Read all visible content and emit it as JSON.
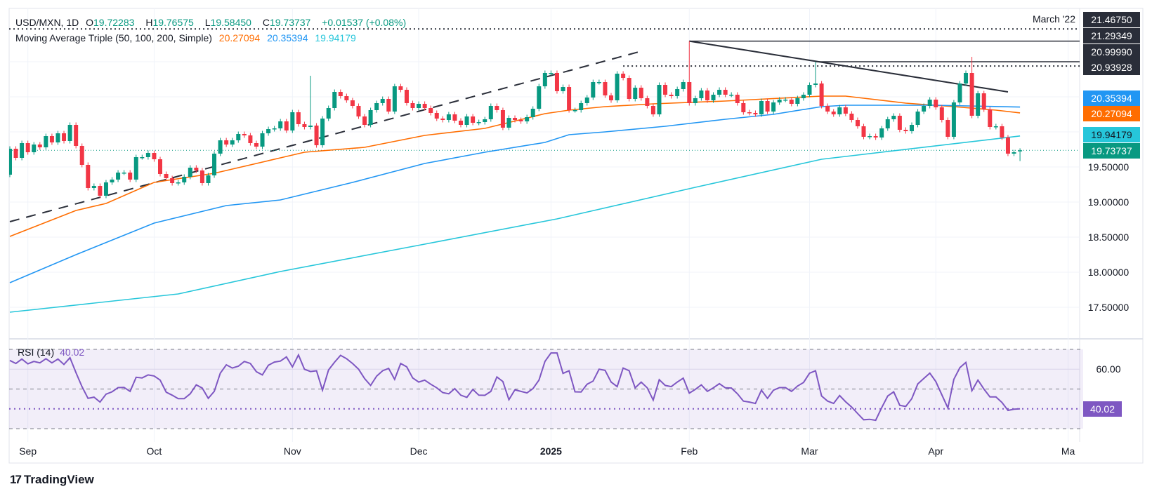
{
  "header": {
    "symbol": "USD/MXN, 1D",
    "o_label": "O",
    "o": "19.72283",
    "h_label": "H",
    "h": "19.76575",
    "l_label": "L",
    "l": "19.58450",
    "c_label": "C",
    "c": "19.73737",
    "change": "+0.01537 (+0.08%)",
    "ma_title": "Moving Average Triple (50, 100, 200, Simple)",
    "ma50": "20.27094",
    "ma100": "20.35394",
    "ma200": "19.94179"
  },
  "colors": {
    "up": "#089981",
    "down": "#f23645",
    "ma50": "#ff6d00",
    "ma100": "#2196f3",
    "ma200": "#26c6da",
    "rsi": "#7e57c2",
    "trend": "#2a2e39"
  },
  "annotation": "March '22",
  "price_tags": {
    "p1": "21.46750",
    "p2": "21.29349",
    "p3": "20.99990",
    "p4": "20.93928",
    "ma100": "20.35394",
    "ma50": "20.27094",
    "ma200": "19.94179",
    "last": "19.73737"
  },
  "rsi": {
    "title": "RSI (14)",
    "value": "40.02",
    "axis_label": "60.00"
  },
  "branding": {
    "logo": "TradingView"
  },
  "chart_data": {
    "type": "candlestick",
    "x_range": [
      "2024-08-28",
      "2025-04-21"
    ],
    "y_axis_ticks": [
      {
        "value": 19.5,
        "label": "19.50000"
      },
      {
        "value": 19.0,
        "label": "19.00000"
      },
      {
        "value": 18.5,
        "label": "18.50000"
      },
      {
        "value": 18.0,
        "label": "18.00000"
      },
      {
        "value": 17.5,
        "label": "17.50000"
      }
    ],
    "y_grid": [
      17.5,
      18.0,
      18.5,
      19.0,
      19.5,
      20.0,
      20.5,
      21.0
    ],
    "x_ticks": [
      {
        "label": "Sep",
        "date": "2024-09-02"
      },
      {
        "label": "Oct",
        "date": "2024-10-01"
      },
      {
        "label": "Nov",
        "date": "2024-11-01"
      },
      {
        "label": "Dec",
        "date": "2024-12-02"
      },
      {
        "label": "2025",
        "date": "2025-01-01",
        "bold": true
      },
      {
        "label": "Feb",
        "date": "2025-02-03"
      },
      {
        "label": "Mar",
        "date": "2025-03-03"
      },
      {
        "label": "Apr",
        "date": "2025-04-01"
      },
      {
        "label": "Ma",
        "date": "2025-05-01"
      }
    ],
    "first_open": 19.39,
    "last_bar": {
      "open": 19.72283,
      "high": 19.76575,
      "low": 19.5845,
      "close": 19.73737
    },
    "wick_highs": {
      "2024-11-06": 20.8,
      "2025-02-03": 21.29349,
      "2025-03-04": 20.9999,
      "2025-04-09": 21.07
    },
    "closes": [
      19.76,
      19.63,
      19.84,
      19.71,
      19.82,
      19.78,
      19.94,
      19.85,
      19.98,
      19.87,
      20.1,
      19.8,
      19.53,
      19.2,
      19.23,
      19.09,
      19.28,
      19.32,
      19.42,
      19.42,
      19.32,
      19.64,
      19.64,
      19.7,
      19.61,
      19.4,
      19.34,
      19.27,
      19.28,
      19.36,
      19.49,
      19.45,
      19.27,
      19.38,
      19.69,
      19.88,
      19.82,
      19.88,
      19.97,
      19.95,
      19.84,
      19.79,
      19.98,
      20.04,
      20.05,
      20.15,
      20.02,
      20.28,
      20.11,
      20.07,
      20.09,
      19.81,
      20.19,
      20.34,
      20.57,
      20.51,
      20.45,
      20.37,
      20.22,
      20.1,
      20.31,
      20.41,
      20.47,
      20.29,
      20.65,
      20.6,
      20.41,
      20.34,
      20.4,
      20.34,
      20.27,
      20.19,
      20.17,
      20.25,
      20.16,
      20.1,
      20.22,
      20.13,
      20.14,
      20.18,
      20.37,
      20.31,
      20.06,
      20.2,
      20.17,
      20.15,
      20.21,
      20.33,
      20.65,
      20.84,
      20.84,
      20.58,
      20.64,
      20.31,
      20.31,
      20.41,
      20.49,
      20.71,
      20.71,
      20.52,
      20.45,
      20.83,
      20.77,
      20.47,
      20.63,
      20.48,
      20.37,
      20.25,
      20.67,
      20.53,
      20.51,
      20.61,
      20.71,
      20.41,
      20.48,
      20.59,
      20.45,
      20.53,
      20.6,
      20.53,
      20.53,
      20.41,
      20.28,
      20.27,
      20.25,
      20.44,
      20.29,
      20.42,
      20.46,
      20.46,
      20.4,
      20.48,
      20.53,
      20.67,
      20.69,
      20.37,
      20.29,
      20.25,
      20.35,
      20.26,
      20.17,
      20.08,
      19.93,
      19.94,
      19.92,
      20.05,
      20.18,
      20.23,
      20.03,
      20.01,
      20.1,
      20.29,
      20.37,
      20.46,
      20.35,
      20.17,
      19.93,
      20.42,
      20.69,
      20.84,
      20.23,
      20.55,
      20.32,
      20.07,
      20.08,
      19.92,
      19.69,
      19.71,
      19.73737
    ],
    "moving_averages": [
      {
        "name": "SMA 50",
        "color": "#ff6d00",
        "points": [
          [
            "2024-08-28",
            18.51
          ],
          [
            "2024-09-12",
            18.88
          ],
          [
            "2024-09-19",
            18.98
          ],
          [
            "2024-10-01",
            19.28
          ],
          [
            "2024-10-15",
            19.41
          ],
          [
            "2024-10-30",
            19.63
          ],
          [
            "2024-11-05",
            19.71
          ],
          [
            "2024-11-19",
            19.78
          ],
          [
            "2024-12-03",
            19.95
          ],
          [
            "2024-12-17",
            20.05
          ],
          [
            "2024-12-31",
            20.26
          ],
          [
            "2025-01-06",
            20.31
          ],
          [
            "2025-01-14",
            20.36
          ],
          [
            "2025-01-24",
            20.4
          ],
          [
            "2025-02-11",
            20.44
          ],
          [
            "2025-03-05",
            20.51
          ],
          [
            "2025-03-11",
            20.51
          ],
          [
            "2025-03-25",
            20.41
          ],
          [
            "2025-04-04",
            20.36
          ],
          [
            "2025-04-15",
            20.31
          ],
          [
            "2025-04-21",
            20.27094
          ]
        ]
      },
      {
        "name": "SMA 100",
        "color": "#2196f3",
        "points": [
          [
            "2024-08-28",
            17.85
          ],
          [
            "2024-09-12",
            18.25
          ],
          [
            "2024-10-01",
            18.7
          ],
          [
            "2024-10-17",
            18.95
          ],
          [
            "2024-10-30",
            19.03
          ],
          [
            "2024-11-15",
            19.28
          ],
          [
            "2024-12-03",
            19.55
          ],
          [
            "2024-12-17",
            19.71
          ],
          [
            "2024-12-31",
            19.85
          ],
          [
            "2025-01-06",
            19.96
          ],
          [
            "2025-01-14",
            20.0
          ],
          [
            "2025-01-28",
            20.08
          ],
          [
            "2025-02-11",
            20.18
          ],
          [
            "2025-02-21",
            20.25
          ],
          [
            "2025-03-05",
            20.36
          ],
          [
            "2025-03-11",
            20.38
          ],
          [
            "2025-04-01",
            20.38
          ],
          [
            "2025-04-21",
            20.35394
          ]
        ]
      },
      {
        "name": "SMA 200",
        "color": "#26c6da",
        "points": [
          [
            "2024-08-28",
            17.43
          ],
          [
            "2024-10-07",
            17.69
          ],
          [
            "2024-10-30",
            18.01
          ],
          [
            "2024-12-03",
            18.4
          ],
          [
            "2025-01-02",
            18.76
          ],
          [
            "2025-02-04",
            19.21
          ],
          [
            "2025-03-05",
            19.61
          ],
          [
            "2025-03-11",
            19.65
          ],
          [
            "2025-04-21",
            19.94179
          ]
        ]
      }
    ],
    "trendlines": [
      {
        "style": "dashed",
        "from": [
          "2024-08-28",
          18.72
        ],
        "to": [
          "2025-01-22",
          21.15
        ]
      },
      {
        "style": "solid",
        "from": [
          "2025-02-03",
          21.29349
        ],
        "to": [
          "2025-04-17",
          20.57
        ]
      }
    ],
    "horizontal_lines": [
      {
        "style": "dotted",
        "price": 21.4675,
        "from": "2024-08-28"
      },
      {
        "style": "solid",
        "price": 21.29349,
        "from": "2025-02-03"
      },
      {
        "style": "solid",
        "price": 20.9999,
        "from": "2025-03-04"
      },
      {
        "style": "dotted",
        "price": 20.93928,
        "from": "2025-01-17"
      }
    ],
    "last_price": 19.73737,
    "rsi": {
      "period": 14,
      "bands": [
        70,
        50,
        30
      ],
      "grid": [
        60
      ],
      "last": 40.02,
      "values": [
        64.4,
        62.9,
        65.1,
        62.7,
        63.9,
        63.2,
        65.3,
        63.2,
        65.1,
        62.4,
        65.8,
        58.2,
        51.2,
        45.3,
        45.9,
        43.4,
        47.4,
        48.6,
        50.7,
        50.8,
        48.8,
        55.9,
        55.6,
        57.1,
        56.6,
        54.5,
        48.4,
        46.9,
        45.1,
        45.1,
        47.6,
        52.1,
        50.5,
        45.3,
        48.8,
        58.0,
        62.2,
        60.6,
        61.5,
        63.9,
        62.9,
        58.7,
        57.1,
        62.0,
        63.6,
        64.1,
        66.2,
        61.2,
        67.2,
        60.0,
        58.8,
        59.2,
        49.4,
        59.6,
        63.5,
        67.0,
        65.3,
        62.9,
        60.0,
        55.3,
        51.8,
        56.5,
        59.2,
        60.4,
        54.9,
        62.9,
        61.2,
        55.6,
        53.5,
        54.5,
        52.4,
        50.6,
        48.2,
        47.6,
        50.2,
        46.9,
        45.8,
        49.8,
        46.9,
        46.8,
        48.8,
        56.1,
        53.8,
        44.6,
        49.6,
        48.8,
        48.0,
        50.2,
        54.5,
        63.9,
        68.2,
        68.2,
        57.9,
        59.2,
        48.6,
        48.5,
        52.4,
        54.0,
        60.0,
        59.4,
        53.5,
        51.2,
        60.6,
        59.2,
        50.6,
        53.5,
        50.6,
        44.4,
        54.7,
        51.8,
        51.2,
        53.5,
        55.5,
        47.9,
        49.8,
        52.1,
        48.8,
        50.6,
        52.7,
        50.6,
        50.5,
        47.6,
        43.9,
        43.4,
        42.7,
        49.4,
        45.3,
        49.4,
        50.7,
        50.7,
        48.8,
        51.5,
        53.3,
        58.0,
        59.2,
        46.5,
        43.9,
        42.7,
        46.7,
        43.6,
        40.9,
        37.6,
        34.5,
        34.7,
        34.2,
        40.6,
        46.5,
        48.6,
        41.8,
        41.2,
        45.1,
        52.6,
        55.3,
        58.0,
        53.8,
        47.1,
        40.4,
        54.9,
        60.8,
        63.4,
        49.1,
        54.5,
        50.0,
        46.0,
        46.0,
        43.2,
        39.2,
        39.8,
        40.02
      ]
    }
  }
}
